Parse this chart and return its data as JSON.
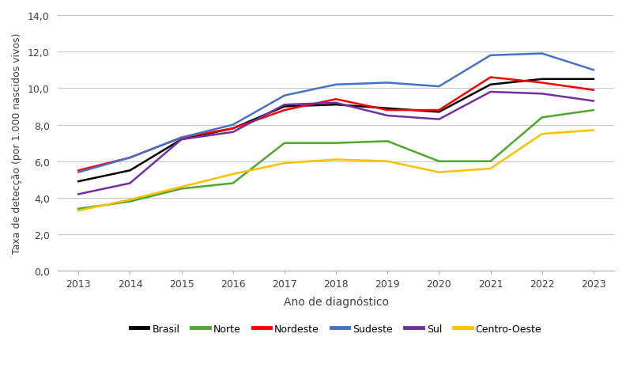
{
  "years": [
    2013,
    2014,
    2015,
    2016,
    2017,
    2018,
    2019,
    2020,
    2021,
    2022,
    2023
  ],
  "series": {
    "Brasil": [
      4.9,
      5.5,
      7.2,
      7.8,
      9.0,
      9.1,
      8.9,
      8.7,
      10.2,
      10.5,
      10.5
    ],
    "Norte": [
      3.4,
      3.8,
      4.5,
      4.8,
      7.0,
      7.0,
      7.1,
      6.0,
      6.0,
      8.4,
      8.8
    ],
    "Nordeste": [
      5.5,
      6.2,
      7.3,
      7.8,
      8.8,
      9.4,
      8.8,
      8.8,
      10.6,
      10.3,
      9.9
    ],
    "Sudeste": [
      5.4,
      6.2,
      7.3,
      8.0,
      9.6,
      10.2,
      10.3,
      10.1,
      11.8,
      11.9,
      11.0
    ],
    "Sul": [
      4.2,
      4.8,
      7.2,
      7.6,
      9.1,
      9.2,
      8.5,
      8.3,
      9.8,
      9.7,
      9.3
    ],
    "Centro-Oeste": [
      3.3,
      3.9,
      4.6,
      5.3,
      5.9,
      6.1,
      6.0,
      5.4,
      5.6,
      7.5,
      7.7
    ]
  },
  "colors": {
    "Brasil": "#000000",
    "Norte": "#4ea72e",
    "Nordeste": "#ff0000",
    "Sudeste": "#4472c4",
    "Sul": "#7030a0",
    "Centro-Oeste": "#ffc000"
  },
  "xlabel": "Ano de diagnóstico",
  "ylabel": "Taxa de detecção (por 1.000 nascidos vivos)",
  "ylim": [
    0,
    14
  ],
  "yticks": [
    0.0,
    2.0,
    4.0,
    6.0,
    8.0,
    10.0,
    12.0,
    14.0
  ],
  "legend_order": [
    "Brasil",
    "Norte",
    "Nordeste",
    "Sudeste",
    "Sul",
    "Centro-Oeste"
  ],
  "background_color": "#ffffff",
  "grid_color": "#c8c8c8",
  "line_width": 1.8,
  "font_family": "Arial"
}
